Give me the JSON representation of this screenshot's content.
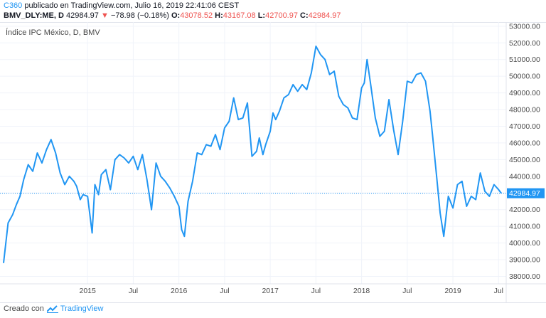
{
  "header": {
    "publisher": "C360",
    "published_text": "publicado en TradingView.com, Julio 16, 2019 22:41:06 CEST",
    "symbol": "BMV_DLY:ME, D",
    "last": "42984.97",
    "change": "−78.98 (−0.18%)",
    "open_label": "O:",
    "open": "43078.52",
    "high_label": "H:",
    "high": "43167.08",
    "low_label": "L:",
    "low": "42700.97",
    "close_label": "C:",
    "close": "42984.97",
    "down_arrow_icon": "triangle-down-icon"
  },
  "pane_title": "Índice IPC México, D, BMV",
  "footer": {
    "created_with": "Creado con",
    "brand": "TradingView",
    "brand_icon": "tradingview-logo-icon"
  },
  "colors": {
    "line": "#2196f3",
    "last_price_bg": "#2196f3",
    "grid": "#f0f3fa",
    "axis_text": "#4a4a4a",
    "down": "#ef5350"
  },
  "chart_data": {
    "type": "line",
    "title": "Índice IPC México, D, BMV",
    "xlabel": "",
    "ylabel": "",
    "ylim": [
      37550,
      53250
    ],
    "x_range": [
      2014.08,
      2019.56
    ],
    "y_ticks": [
      38000,
      39000,
      40000,
      41000,
      42000,
      43000,
      44000,
      45000,
      46000,
      47000,
      48000,
      49000,
      50000,
      51000,
      52000,
      53000
    ],
    "y_tick_labels": [
      "38000.00",
      "39000.00",
      "40000.00",
      "41000.00",
      "42000.00",
      "43000.00",
      "44000.00",
      "45000.00",
      "46000.00",
      "47000.00",
      "48000.00",
      "49000.00",
      "50000.00",
      "51000.00",
      "52000.00",
      "53000.00"
    ],
    "x_ticks": [
      {
        "t": 2015.0,
        "label": "2015"
      },
      {
        "t": 2015.5,
        "label": "Jul"
      },
      {
        "t": 2016.0,
        "label": "2016"
      },
      {
        "t": 2016.5,
        "label": "Jul"
      },
      {
        "t": 2017.0,
        "label": "2017"
      },
      {
        "t": 2017.5,
        "label": "Jul"
      },
      {
        "t": 2018.0,
        "label": "2018"
      },
      {
        "t": 2018.5,
        "label": "Jul"
      },
      {
        "t": 2019.0,
        "label": "2019"
      },
      {
        "t": 2019.5,
        "label": "Jul"
      }
    ],
    "last_value": 42984.97,
    "last_value_label": "42984.97",
    "series": [
      {
        "name": "BMV_DLY:ME",
        "x": [
          2014.08,
          2014.13,
          2014.18,
          2014.22,
          2014.26,
          2014.3,
          2014.35,
          2014.4,
          2014.45,
          2014.5,
          2014.55,
          2014.6,
          2014.65,
          2014.7,
          2014.75,
          2014.8,
          2014.85,
          2014.88,
          2014.92,
          2014.95,
          2015.0,
          2015.05,
          2015.08,
          2015.12,
          2015.15,
          2015.2,
          2015.25,
          2015.3,
          2015.35,
          2015.4,
          2015.45,
          2015.5,
          2015.55,
          2015.6,
          2015.65,
          2015.7,
          2015.75,
          2015.8,
          2015.85,
          2015.9,
          2015.95,
          2016.0,
          2016.03,
          2016.06,
          2016.1,
          2016.15,
          2016.2,
          2016.25,
          2016.3,
          2016.35,
          2016.4,
          2016.45,
          2016.5,
          2016.55,
          2016.6,
          2016.65,
          2016.7,
          2016.75,
          2016.8,
          2016.85,
          2016.88,
          2016.92,
          2016.95,
          2017.0,
          2017.03,
          2017.06,
          2017.1,
          2017.15,
          2017.2,
          2017.25,
          2017.3,
          2017.35,
          2017.4,
          2017.45,
          2017.5,
          2017.55,
          2017.6,
          2017.65,
          2017.7,
          2017.75,
          2017.8,
          2017.85,
          2017.9,
          2017.95,
          2018.0,
          2018.03,
          2018.06,
          2018.1,
          2018.15,
          2018.2,
          2018.25,
          2018.3,
          2018.35,
          2018.4,
          2018.45,
          2018.5,
          2018.55,
          2018.6,
          2018.65,
          2018.7,
          2018.75,
          2018.78,
          2018.82,
          2018.86,
          2018.9,
          2018.95,
          2019.0,
          2019.05,
          2019.1,
          2019.15,
          2019.2,
          2019.25,
          2019.3,
          2019.35,
          2019.4,
          2019.45,
          2019.5,
          2019.53
        ],
        "values": [
          38800,
          41200,
          41700,
          42300,
          42800,
          43800,
          44700,
          44300,
          45400,
          44800,
          45600,
          46200,
          45400,
          44200,
          43500,
          44000,
          43700,
          43400,
          42600,
          42900,
          42800,
          40600,
          43500,
          42900,
          44100,
          44400,
          43200,
          45000,
          45300,
          45100,
          44800,
          45200,
          44400,
          45300,
          43800,
          42000,
          44800,
          44000,
          43700,
          43300,
          42800,
          42200,
          40800,
          40400,
          42500,
          43700,
          45400,
          45300,
          45900,
          45800,
          46500,
          45600,
          46900,
          47300,
          48700,
          47400,
          47500,
          48400,
          45200,
          45500,
          46300,
          45300,
          45900,
          46700,
          47800,
          47400,
          47900,
          48700,
          48900,
          49500,
          49100,
          49500,
          49200,
          50200,
          51800,
          51300,
          51000,
          50100,
          50300,
          48800,
          48300,
          48100,
          47500,
          47400,
          49300,
          49600,
          51000,
          49500,
          47500,
          46400,
          46700,
          48600,
          46800,
          45300,
          47300,
          49700,
          49600,
          50100,
          50200,
          49700,
          47900,
          46300,
          44100,
          41800,
          40400,
          42800,
          42100,
          43500,
          43700,
          42200,
          42800,
          42600,
          44200,
          43100,
          42800,
          43500,
          43200,
          42984.97
        ]
      }
    ]
  }
}
